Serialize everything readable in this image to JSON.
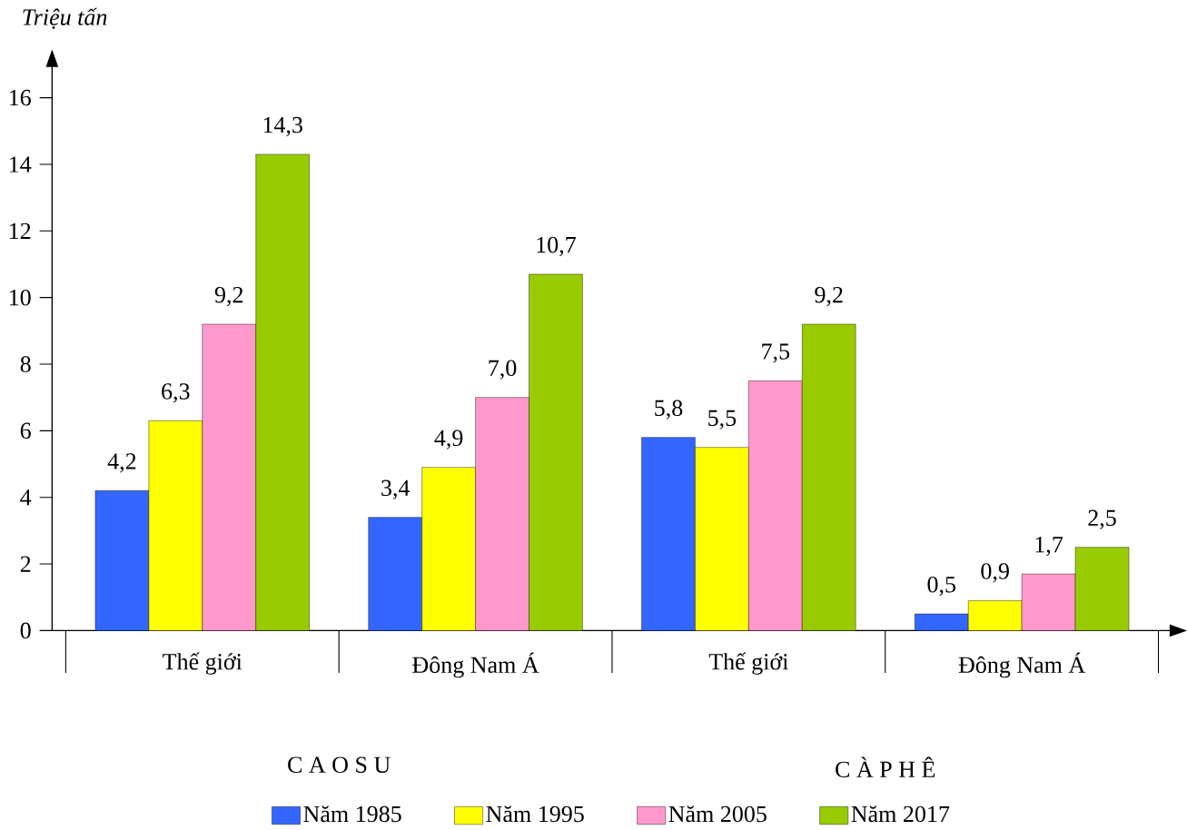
{
  "chart_data": {
    "type": "bar",
    "ylabel": "Triệu tấn",
    "categories": [
      "Thế giới",
      "Đông Nam Á",
      "Thế giới",
      "Đông Nam Á"
    ],
    "series": [
      {
        "name": "Năm 1985",
        "color": "#3366ff",
        "values": [
          4.2,
          3.4,
          5.8,
          0.5
        ],
        "value_labels": [
          "4,2",
          "3,4",
          "5,8",
          "0,5"
        ]
      },
      {
        "name": "Năm 1995",
        "color": "#ffff00",
        "values": [
          6.3,
          4.9,
          5.5,
          0.9
        ],
        "value_labels": [
          "6,3",
          "4,9",
          "5,5",
          "0,9"
        ]
      },
      {
        "name": "Năm 2005",
        "color": "#ff99cc",
        "values": [
          9.2,
          7.0,
          7.5,
          1.7
        ],
        "value_labels": [
          "9,2",
          "7,0",
          "7,5",
          "1,7"
        ]
      },
      {
        "name": "Năm 2017",
        "color": "#99cc00",
        "values": [
          14.3,
          10.7,
          9.2,
          2.5
        ],
        "value_labels": [
          "14,3",
          "10,7",
          "9,2",
          "2,5"
        ]
      }
    ],
    "annotations": [
      "C A O S U",
      "C À P H Ê"
    ],
    "ylim": [
      0,
      17
    ],
    "yticks": [
      0,
      2,
      4,
      6,
      8,
      10,
      12,
      14,
      16
    ],
    "grid": false,
    "legend": "bottom"
  }
}
